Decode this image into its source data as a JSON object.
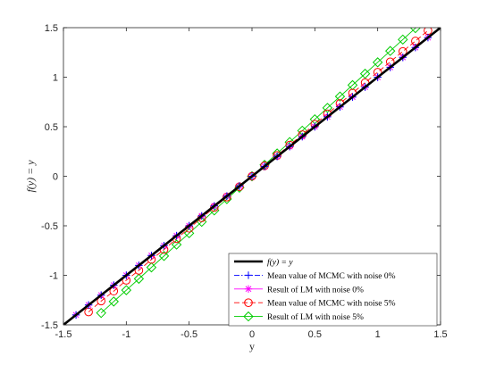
{
  "chart_data": {
    "type": "line",
    "xlabel": "y",
    "ylabel": "f(y) = y",
    "xlim": [
      -1.5,
      1.5
    ],
    "ylim": [
      -1.5,
      1.5
    ],
    "x_ticks": [
      "-1.5",
      "-1",
      "-0.5",
      "0",
      "0.5",
      "1",
      "1.5"
    ],
    "y_ticks": [
      "-1.5",
      "-1",
      "-0.5",
      "0",
      "0.5",
      "1",
      "1.5"
    ],
    "grid": false,
    "legend_position": "bottom-right",
    "series": [
      {
        "name": "f(y) = y",
        "color": "#000000",
        "line": "solid",
        "marker": "none",
        "x": [
          -1.5,
          1.5
        ],
        "y": [
          -1.5,
          1.5
        ]
      },
      {
        "name": "Mean value of MCMC with noise 0%",
        "color": "#0000ff",
        "line": "dashdot",
        "marker": "plus",
        "x": [
          -1.4,
          -1.3,
          -1.2,
          -1.1,
          -1.0,
          -0.9,
          -0.8,
          -0.7,
          -0.6,
          -0.5,
          -0.4,
          -0.3,
          -0.2,
          -0.1,
          0.0,
          0.1,
          0.2,
          0.3,
          0.4,
          0.5,
          0.6,
          0.7,
          0.8,
          0.9,
          1.0,
          1.1,
          1.2,
          1.3,
          1.4
        ],
        "y": [
          -1.4,
          -1.3,
          -1.2,
          -1.1,
          -1.0,
          -0.9,
          -0.8,
          -0.7,
          -0.6,
          -0.5,
          -0.4,
          -0.3,
          -0.2,
          -0.1,
          0.0,
          0.1,
          0.2,
          0.3,
          0.4,
          0.5,
          0.6,
          0.7,
          0.8,
          0.9,
          1.0,
          1.1,
          1.2,
          1.3,
          1.4
        ]
      },
      {
        "name": "Result of LM with noise 0%",
        "color": "#ff00ff",
        "line": "solid",
        "marker": "asterisk",
        "x": [
          -1.4,
          -1.3,
          -1.2,
          -1.1,
          -1.0,
          -0.9,
          -0.8,
          -0.7,
          -0.6,
          -0.5,
          -0.4,
          -0.3,
          -0.2,
          -0.1,
          0.0,
          0.1,
          0.2,
          0.3,
          0.4,
          0.5,
          0.6,
          0.7,
          0.8,
          0.9,
          1.0,
          1.1,
          1.2,
          1.3,
          1.4
        ],
        "y": [
          -1.4,
          -1.3,
          -1.2,
          -1.1,
          -1.0,
          -0.9,
          -0.8,
          -0.7,
          -0.6,
          -0.5,
          -0.4,
          -0.3,
          -0.2,
          -0.1,
          0.0,
          0.1,
          0.2,
          0.3,
          0.4,
          0.5,
          0.6,
          0.7,
          0.8,
          0.9,
          1.0,
          1.1,
          1.2,
          1.3,
          1.4
        ]
      },
      {
        "name": "Mean value of MCMC with noise 5%",
        "color": "#ff0000",
        "line": "dashed",
        "marker": "circle",
        "x": [
          -1.3,
          -1.2,
          -1.1,
          -1.0,
          -0.9,
          -0.8,
          -0.7,
          -0.6,
          -0.5,
          -0.4,
          -0.3,
          -0.2,
          -0.1,
          0.0,
          0.1,
          0.2,
          0.3,
          0.4,
          0.5,
          0.6,
          0.7,
          0.8,
          0.9,
          1.0,
          1.1,
          1.2,
          1.3,
          1.4
        ],
        "y": [
          -1.37,
          -1.26,
          -1.16,
          -1.05,
          -0.95,
          -0.84,
          -0.74,
          -0.63,
          -0.525,
          -0.42,
          -0.315,
          -0.21,
          -0.105,
          0.0,
          0.105,
          0.21,
          0.315,
          0.42,
          0.525,
          0.63,
          0.735,
          0.84,
          0.945,
          1.05,
          1.155,
          1.26,
          1.365,
          1.47
        ]
      },
      {
        "name": "Result of LM with noise 5%",
        "color": "#00cc00",
        "line": "solid",
        "marker": "diamond",
        "x": [
          -1.2,
          -1.1,
          -1.0,
          -0.9,
          -0.8,
          -0.7,
          -0.6,
          -0.5,
          -0.4,
          -0.3,
          -0.2,
          -0.1,
          0.0,
          0.1,
          0.2,
          0.3,
          0.4,
          0.5,
          0.6,
          0.7,
          0.8,
          0.9,
          1.0,
          1.1,
          1.2,
          1.3,
          1.4
        ],
        "y": [
          -1.38,
          -1.265,
          -1.15,
          -1.035,
          -0.92,
          -0.805,
          -0.69,
          -0.575,
          -0.46,
          -0.345,
          -0.23,
          -0.115,
          0.0,
          0.115,
          0.23,
          0.345,
          0.46,
          0.575,
          0.69,
          0.805,
          0.92,
          1.035,
          1.15,
          1.265,
          1.38,
          1.495,
          1.61
        ]
      }
    ]
  }
}
